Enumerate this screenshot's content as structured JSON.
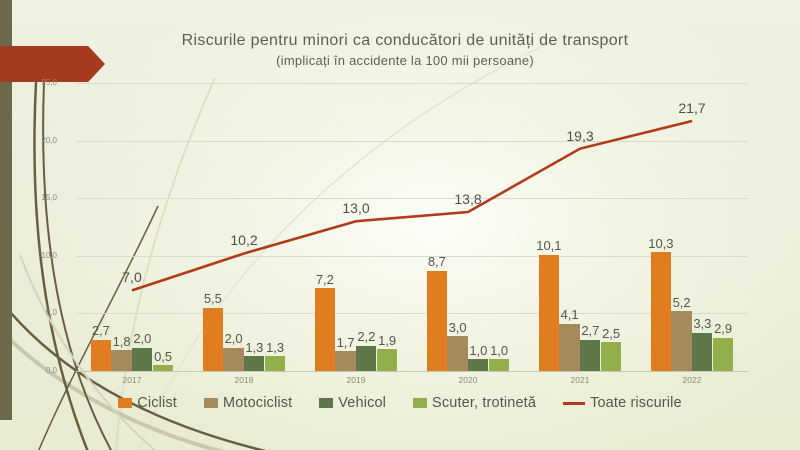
{
  "slide": {
    "title": "Riscurile pentru minori ca conducători de unități de transport",
    "subtitle": "(implicați în accidente la 100 mii persoane)"
  },
  "colors": {
    "accent_arrow": "#a53a20",
    "left_stripe": "#6e684a",
    "background_edge": "#e7ecd2",
    "gridline": "#d9dac9",
    "label_text": "#55564b"
  },
  "chart_data": {
    "type": "bar",
    "subtype": "bar-and-line-combo",
    "title": "Riscurile pentru minori ca conducători de unități de transport (implicați în accidente la 100 mii persoane)",
    "categories": [
      "2017",
      "2018",
      "2019",
      "2020",
      "2021",
      "2022"
    ],
    "series": [
      {
        "name": "Ciclist",
        "type": "bar",
        "color": "#e17d20",
        "values": [
          2.7,
          5.5,
          7.2,
          8.7,
          10.1,
          10.3
        ],
        "labels": [
          "2,7",
          "5,5",
          "7,2",
          "8,7",
          "10,1",
          "10,3"
        ]
      },
      {
        "name": "Motociclist",
        "type": "bar",
        "color": "#a58a5c",
        "values": [
          1.8,
          2.0,
          1.7,
          3.0,
          4.1,
          5.2
        ],
        "labels": [
          "1,8",
          "2,0",
          "1,7",
          "3,0",
          "4,1",
          "5,2"
        ]
      },
      {
        "name": "Vehicol",
        "type": "bar",
        "color": "#5e7849",
        "values": [
          2.0,
          1.3,
          2.2,
          1.0,
          2.7,
          3.3
        ],
        "labels": [
          "2,0",
          "1,3",
          "2,2",
          "1,0",
          "2,7",
          "3,3"
        ]
      },
      {
        "name": "Scuter, trotinetă",
        "type": "bar",
        "color": "#93af4b",
        "values": [
          0.5,
          1.3,
          1.9,
          1.0,
          2.5,
          2.9
        ],
        "labels": [
          "0,5",
          "1,3",
          "1,9",
          "1,0",
          "2,5",
          "2,9"
        ]
      },
      {
        "name": "Toate riscurile",
        "type": "line",
        "color": "#b03a1a",
        "values": [
          7.0,
          10.2,
          13.0,
          13.8,
          19.3,
          21.7
        ],
        "labels": [
          "7,0",
          "10,2",
          "13,0",
          "13,8",
          "19,3",
          "21,7"
        ]
      }
    ],
    "y_axis": {
      "min": 0,
      "max": 25,
      "step": 5,
      "tick_labels": [
        "0,0",
        "5,0",
        "10,0",
        "15,0",
        "20,0",
        "25,0"
      ]
    },
    "grid": true,
    "legend_position": "bottom",
    "xlabel": "",
    "ylabel": ""
  }
}
